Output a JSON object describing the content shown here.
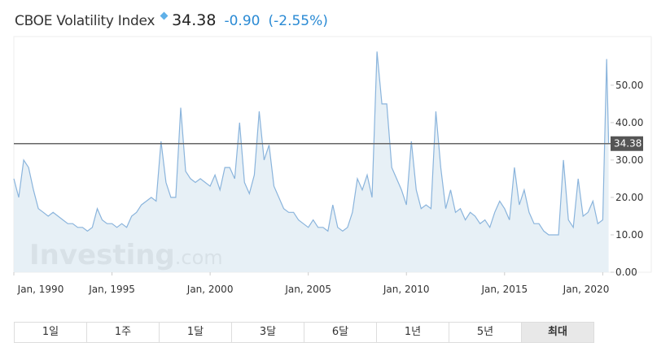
{
  "header": {
    "title": "CBOE Volatility Index",
    "change": "-0.90",
    "change_percent": "(-2.55%)"
  },
  "watermark": {
    "brand": "Investing",
    "suffix": ".com"
  },
  "buttons": [
    "1일",
    "1주",
    "1달",
    "3달",
    "6달",
    "1년",
    "5년",
    "최대"
  ],
  "active_button": 7,
  "chart_data": {
    "type": "area",
    "x": [
      1990,
      1990.25,
      1990.5,
      1990.75,
      1991,
      1991.25,
      1991.5,
      1991.75,
      1992,
      1992.25,
      1992.5,
      1992.75,
      1993,
      1993.25,
      1993.5,
      1993.75,
      1994,
      1994.25,
      1994.5,
      1994.75,
      1995,
      1995.25,
      1995.5,
      1995.75,
      1996,
      1996.25,
      1996.5,
      1996.75,
      1997,
      1997.25,
      1997.5,
      1997.75,
      1998,
      1998.25,
      1998.5,
      1998.75,
      1999,
      1999.25,
      1999.5,
      1999.75,
      2000,
      2000.25,
      2000.5,
      2000.75,
      2001,
      2001.25,
      2001.5,
      2001.75,
      2002,
      2002.25,
      2002.5,
      2002.75,
      2003,
      2003.25,
      2003.5,
      2003.75,
      2004,
      2004.25,
      2004.5,
      2004.75,
      2005,
      2005.25,
      2005.5,
      2005.75,
      2006,
      2006.25,
      2006.5,
      2006.75,
      2007,
      2007.25,
      2007.5,
      2007.75,
      2008,
      2008.25,
      2008.5,
      2008.75,
      2009,
      2009.25,
      2009.5,
      2009.75,
      2010,
      2010.25,
      2010.5,
      2010.75,
      2011,
      2011.25,
      2011.5,
      2011.75,
      2012,
      2012.25,
      2012.5,
      2012.75,
      2013,
      2013.25,
      2013.5,
      2013.75,
      2014,
      2014.25,
      2014.5,
      2014.75,
      2015,
      2015.25,
      2015.5,
      2015.75,
      2016,
      2016.25,
      2016.5,
      2016.75,
      2017,
      2017.25,
      2017.5,
      2017.75,
      2018,
      2018.25,
      2018.5,
      2018.75,
      2019,
      2019.25,
      2019.5,
      2019.75,
      2020,
      2020.2,
      2020.3
    ],
    "values": [
      25,
      20,
      30,
      28,
      22,
      17,
      16,
      15,
      16,
      15,
      14,
      13,
      13,
      12,
      12,
      11,
      12,
      17,
      14,
      13,
      13,
      12,
      13,
      12,
      15,
      16,
      18,
      19,
      20,
      19,
      35,
      24,
      20,
      20,
      44,
      27,
      25,
      24,
      25,
      24,
      23,
      26,
      22,
      28,
      28,
      25,
      40,
      24,
      21,
      26,
      43,
      30,
      34,
      23,
      20,
      17,
      16,
      16,
      14,
      13,
      12,
      14,
      12,
      12,
      11,
      18,
      12,
      11,
      12,
      16,
      25,
      22,
      26,
      20,
      59,
      45,
      45,
      28,
      25,
      22,
      18,
      35,
      22,
      17,
      18,
      17,
      43,
      28,
      17,
      22,
      16,
      17,
      14,
      16,
      15,
      13,
      14,
      12,
      16,
      19,
      17,
      14,
      28,
      18,
      22,
      16,
      13,
      13,
      11,
      10,
      10,
      10,
      30,
      14,
      12,
      25,
      15,
      16,
      19,
      13,
      14,
      57,
      34.38
    ],
    "color": "#8ab4dc",
    "fill": "#e3edf5",
    "last": 34.38,
    "xlim": [
      1990,
      2020.4
    ],
    "xticks": [
      {
        "value": 1990,
        "label": "Jan, 1990"
      },
      {
        "value": 1995,
        "label": "Jan, 1995"
      },
      {
        "value": 2000,
        "label": "Jan, 2000"
      },
      {
        "value": 2005,
        "label": "Jan, 2005"
      },
      {
        "value": 2010,
        "label": "Jan, 2010"
      },
      {
        "value": 2015,
        "label": "Jan, 2015"
      },
      {
        "value": 2020,
        "label": "Jan, 2020"
      }
    ],
    "ylim": [
      0,
      63
    ],
    "yticks": [
      {
        "value": 0,
        "label": "0.00"
      },
      {
        "value": 10,
        "label": "10.00"
      },
      {
        "value": 20,
        "label": "20.00"
      },
      {
        "value": 30,
        "label": "30.00"
      },
      {
        "value": 40,
        "label": "40.00"
      },
      {
        "value": 50,
        "label": "50.00"
      }
    ]
  }
}
